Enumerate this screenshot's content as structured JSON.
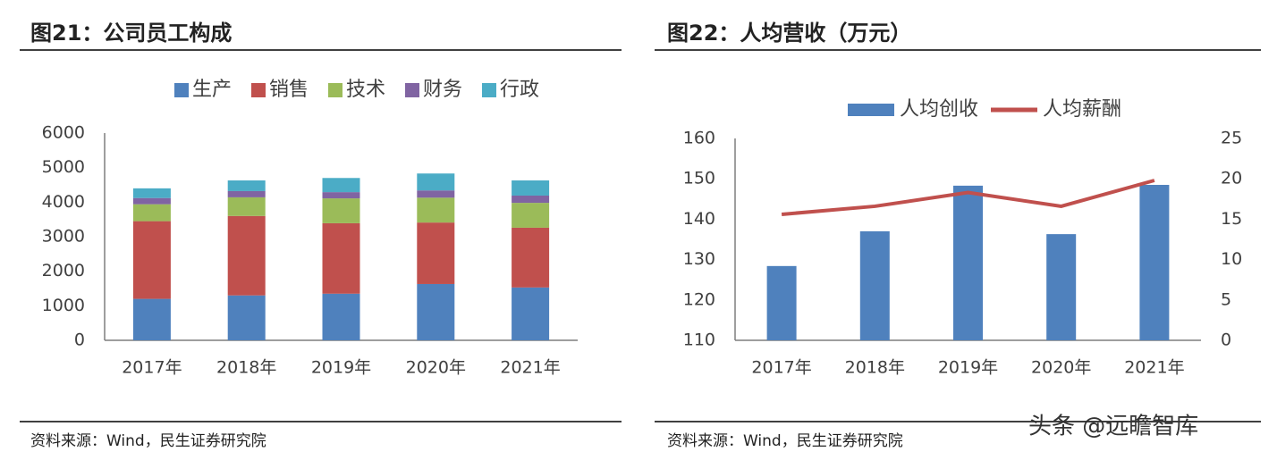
{
  "chart_data": [
    {
      "type": "bar",
      "stacked": true,
      "title": "图21：公司员工构成",
      "source": "资料来源：Wind，民生证券研究院",
      "categories": [
        "2017年",
        "2018年",
        "2019年",
        "2020年",
        "2021年"
      ],
      "series": [
        {
          "name": "生产",
          "color": "#4f81bd",
          "values": [
            1200,
            1300,
            1350,
            1630,
            1530
          ]
        },
        {
          "name": "销售",
          "color": "#c0504d",
          "values": [
            2250,
            2300,
            2040,
            1780,
            1730
          ]
        },
        {
          "name": "技术",
          "color": "#9bbb59",
          "values": [
            490,
            540,
            720,
            720,
            720
          ]
        },
        {
          "name": "财务",
          "color": "#8064a2",
          "values": [
            180,
            180,
            180,
            210,
            210
          ]
        },
        {
          "name": "行政",
          "color": "#4bacc6",
          "values": [
            280,
            310,
            410,
            490,
            440
          ]
        }
      ],
      "ylim": [
        0,
        6000
      ],
      "yticks": [
        0,
        1000,
        2000,
        3000,
        4000,
        5000,
        6000
      ],
      "grid": false
    },
    {
      "type": "combo",
      "title": "图22：人均营收（万元）",
      "source": "资料来源：Wind，民生证券研究院",
      "categories": [
        "2017年",
        "2018年",
        "2019年",
        "2020年",
        "2021年"
      ],
      "series": [
        {
          "name": "人均创收",
          "type": "bar",
          "color": "#4f81bd",
          "values": [
            128.4,
            137.0,
            148.3,
            136.3,
            148.5
          ]
        },
        {
          "name": "人均薪酬",
          "type": "line",
          "axis": "y2",
          "color": "#c0504d",
          "values": [
            15.6,
            16.6,
            18.3,
            16.6,
            19.8
          ]
        }
      ],
      "ylim": [
        110,
        160
      ],
      "yticks": [
        110,
        120,
        130,
        140,
        150,
        160
      ],
      "y2lim": [
        0,
        25
      ],
      "y2ticks": [
        0,
        5,
        10,
        15,
        20,
        25
      ],
      "grid": false
    }
  ],
  "watermark": "头条 @远瞻智库"
}
